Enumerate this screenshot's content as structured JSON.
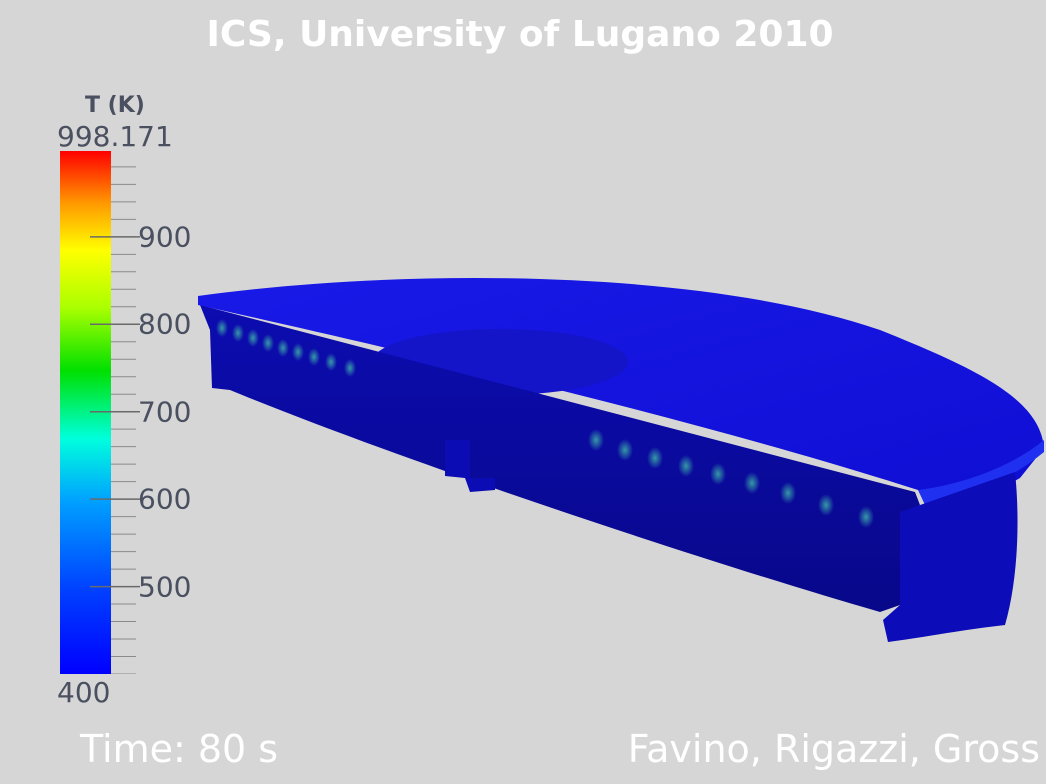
{
  "title": "ICS, University of Lugano 2010",
  "colorbar": {
    "label": "T (K)",
    "max_label": "998.171",
    "min_label": "400",
    "max": 998.171,
    "min": 400,
    "ticks": [
      "900",
      "800",
      "700",
      "600",
      "500"
    ],
    "tick_values": [
      900,
      800,
      700,
      600,
      500
    ],
    "colors": [
      "#0000ff",
      "#0055ff",
      "#00aaff",
      "#00ffcc",
      "#00ff00",
      "#aaff00",
      "#ffff00",
      "#ffaa00",
      "#ff5500",
      "#ff0000"
    ]
  },
  "footer": {
    "time": "Time: 80 s",
    "authors": "Favino, Rigazzi, Gross"
  },
  "model_colors": {
    "top": "#1010e0",
    "side": "#0a0a9a",
    "hot_spot": "#2ea0a0"
  }
}
